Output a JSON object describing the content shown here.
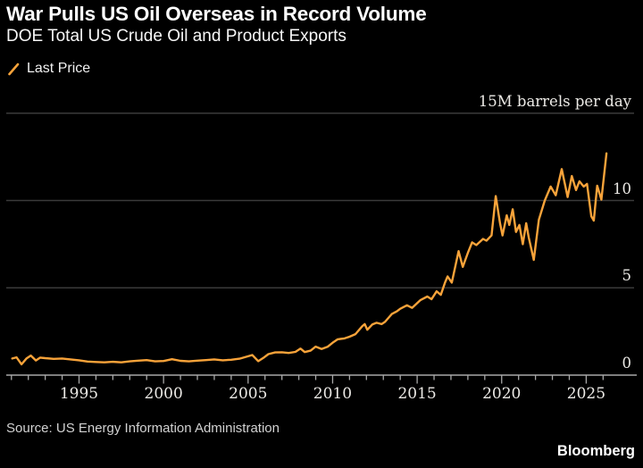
{
  "header": {
    "title": "War Pulls US Oil Overseas in Record Volume",
    "subtitle": "DOE Total US Crude Oil and Product Exports"
  },
  "legend": {
    "label": "Last Price",
    "line_color": "#F8A33A"
  },
  "footer": {
    "source": "Source: US Energy Information Administration",
    "brand": "Bloomberg"
  },
  "colors": {
    "background": "#000000",
    "line": "#F8A33A",
    "gridline": "#3a3a3a",
    "axis": "#a8a8a8",
    "text": "#eceae6"
  },
  "chart_data": {
    "type": "line",
    "title": "War Pulls US Oil Overseas in Record Volume",
    "subtitle": "DOE Total US Crude Oil and Product Exports",
    "series_name": "Last Price",
    "ylabel": "M barrels per day",
    "unit_label": "15M barrels per day",
    "xlim": [
      1990.8,
      2026.6
    ],
    "ylim": [
      0,
      15
    ],
    "grid": "horizontal",
    "legend_position": "top-left",
    "line_color": "#F8A33A",
    "y_ticks": [
      {
        "value": 0,
        "label": "0"
      },
      {
        "value": 5,
        "label": "5"
      },
      {
        "value": 10,
        "label": "10"
      },
      {
        "value": 15,
        "label": "15M barrels per day"
      }
    ],
    "x_major_ticks": [
      1995,
      2000,
      2005,
      2010,
      2015,
      2020,
      2025
    ],
    "x_minor_tick_start": 1991,
    "x_minor_tick_end": 2026,
    "points": [
      [
        1991.05,
        0.95
      ],
      [
        1991.3,
        1.02
      ],
      [
        1991.6,
        0.62
      ],
      [
        1991.9,
        0.96
      ],
      [
        1992.15,
        1.12
      ],
      [
        1992.45,
        0.84
      ],
      [
        1992.7,
        1.0
      ],
      [
        1993.0,
        0.97
      ],
      [
        1993.5,
        0.93
      ],
      [
        1994.0,
        0.95
      ],
      [
        1994.5,
        0.9
      ],
      [
        1995.0,
        0.85
      ],
      [
        1995.5,
        0.78
      ],
      [
        1996.0,
        0.75
      ],
      [
        1996.5,
        0.73
      ],
      [
        1997.0,
        0.76
      ],
      [
        1997.5,
        0.73
      ],
      [
        1998.0,
        0.79
      ],
      [
        1998.5,
        0.83
      ],
      [
        1999.0,
        0.86
      ],
      [
        1999.5,
        0.79
      ],
      [
        2000.0,
        0.81
      ],
      [
        2000.5,
        0.91
      ],
      [
        2001.0,
        0.82
      ],
      [
        2001.5,
        0.79
      ],
      [
        2002.0,
        0.83
      ],
      [
        2002.5,
        0.86
      ],
      [
        2003.0,
        0.9
      ],
      [
        2003.5,
        0.85
      ],
      [
        2004.0,
        0.88
      ],
      [
        2004.5,
        0.94
      ],
      [
        2005.0,
        1.08
      ],
      [
        2005.25,
        1.15
      ],
      [
        2005.6,
        0.8
      ],
      [
        2005.9,
        0.98
      ],
      [
        2006.2,
        1.2
      ],
      [
        2006.6,
        1.3
      ],
      [
        2007.0,
        1.31
      ],
      [
        2007.4,
        1.27
      ],
      [
        2007.8,
        1.33
      ],
      [
        2008.1,
        1.52
      ],
      [
        2008.35,
        1.32
      ],
      [
        2008.7,
        1.4
      ],
      [
        2009.0,
        1.63
      ],
      [
        2009.35,
        1.5
      ],
      [
        2009.7,
        1.62
      ],
      [
        2010.0,
        1.85
      ],
      [
        2010.3,
        2.05
      ],
      [
        2010.7,
        2.1
      ],
      [
        2011.0,
        2.2
      ],
      [
        2011.35,
        2.35
      ],
      [
        2011.75,
        2.8
      ],
      [
        2011.9,
        2.92
      ],
      [
        2012.05,
        2.6
      ],
      [
        2012.35,
        2.9
      ],
      [
        2012.6,
        3.0
      ],
      [
        2012.9,
        2.92
      ],
      [
        2013.1,
        3.05
      ],
      [
        2013.5,
        3.5
      ],
      [
        2013.8,
        3.65
      ],
      [
        2014.0,
        3.8
      ],
      [
        2014.4,
        4.0
      ],
      [
        2014.7,
        3.85
      ],
      [
        2015.2,
        4.3
      ],
      [
        2015.6,
        4.5
      ],
      [
        2015.85,
        4.35
      ],
      [
        2016.15,
        4.8
      ],
      [
        2016.4,
        4.6
      ],
      [
        2016.65,
        5.3
      ],
      [
        2016.8,
        5.65
      ],
      [
        2017.05,
        5.3
      ],
      [
        2017.45,
        7.1
      ],
      [
        2017.7,
        6.2
      ],
      [
        2018.0,
        7.0
      ],
      [
        2018.25,
        7.6
      ],
      [
        2018.5,
        7.45
      ],
      [
        2018.9,
        7.8
      ],
      [
        2019.1,
        7.7
      ],
      [
        2019.4,
        8.0
      ],
      [
        2019.65,
        10.25
      ],
      [
        2019.9,
        8.7
      ],
      [
        2020.05,
        8.0
      ],
      [
        2020.3,
        9.15
      ],
      [
        2020.45,
        8.6
      ],
      [
        2020.65,
        9.5
      ],
      [
        2020.85,
        8.2
      ],
      [
        2021.05,
        8.6
      ],
      [
        2021.25,
        7.5
      ],
      [
        2021.45,
        8.7
      ],
      [
        2021.6,
        7.9
      ],
      [
        2021.9,
        6.6
      ],
      [
        2022.2,
        8.9
      ],
      [
        2022.55,
        10.0
      ],
      [
        2022.9,
        10.8
      ],
      [
        2023.2,
        10.3
      ],
      [
        2023.55,
        11.8
      ],
      [
        2023.9,
        10.2
      ],
      [
        2024.15,
        11.4
      ],
      [
        2024.4,
        10.6
      ],
      [
        2024.6,
        11.1
      ],
      [
        2024.85,
        10.8
      ],
      [
        2025.05,
        10.95
      ],
      [
        2025.3,
        9.1
      ],
      [
        2025.45,
        8.85
      ],
      [
        2025.65,
        10.85
      ],
      [
        2025.9,
        10.05
      ],
      [
        2026.2,
        12.7
      ]
    ]
  }
}
